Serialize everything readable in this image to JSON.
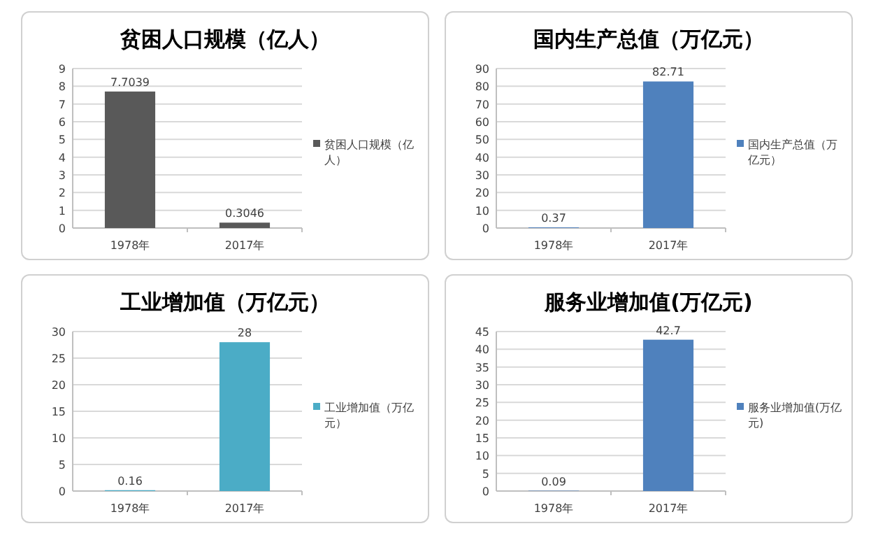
{
  "chart_data": [
    {
      "type": "bar",
      "title": "贫困人口规模（亿人）",
      "categories": [
        "1978年",
        "2017年"
      ],
      "series": [
        {
          "name": "贫困人口规模（亿人）",
          "color": "#595959",
          "values": [
            7.7039,
            0.3046
          ]
        }
      ],
      "ylim": [
        0,
        9
      ],
      "yticks": [
        0,
        1,
        2,
        3,
        4,
        5,
        6,
        7,
        8,
        9
      ],
      "grid": "y",
      "legend": "right",
      "data_labels": true
    },
    {
      "type": "bar",
      "title": "国内生产总值（万亿元）",
      "categories": [
        "1978年",
        "2017年"
      ],
      "series": [
        {
          "name": "国内生产总值（万亿元）",
          "color": "#4f81bd",
          "values": [
            0.37,
            82.71
          ]
        }
      ],
      "ylim": [
        0,
        90
      ],
      "yticks": [
        0,
        10,
        20,
        30,
        40,
        50,
        60,
        70,
        80,
        90
      ],
      "grid": "y",
      "legend": "right",
      "data_labels": true
    },
    {
      "type": "bar",
      "title": "工业增加值（万亿元）",
      "categories": [
        "1978年",
        "2017年"
      ],
      "series": [
        {
          "name": "工业增加值（万亿元）",
          "color": "#4bacc6",
          "values": [
            0.16,
            28
          ]
        }
      ],
      "ylim": [
        0,
        30
      ],
      "yticks": [
        0,
        5,
        10,
        15,
        20,
        25,
        30
      ],
      "grid": "y",
      "legend": "right",
      "data_labels": true
    },
    {
      "type": "bar",
      "title": "服务业增加值(万亿元)",
      "categories": [
        "1978年",
        "2017年"
      ],
      "series": [
        {
          "name": "服务业增加值(万亿元)",
          "color": "#4f81bd",
          "values": [
            0.09,
            42.7
          ]
        }
      ],
      "ylim": [
        0,
        45
      ],
      "yticks": [
        0,
        5,
        10,
        15,
        20,
        25,
        30,
        35,
        40,
        45
      ],
      "grid": "y",
      "legend": "right",
      "data_labels": true
    }
  ]
}
